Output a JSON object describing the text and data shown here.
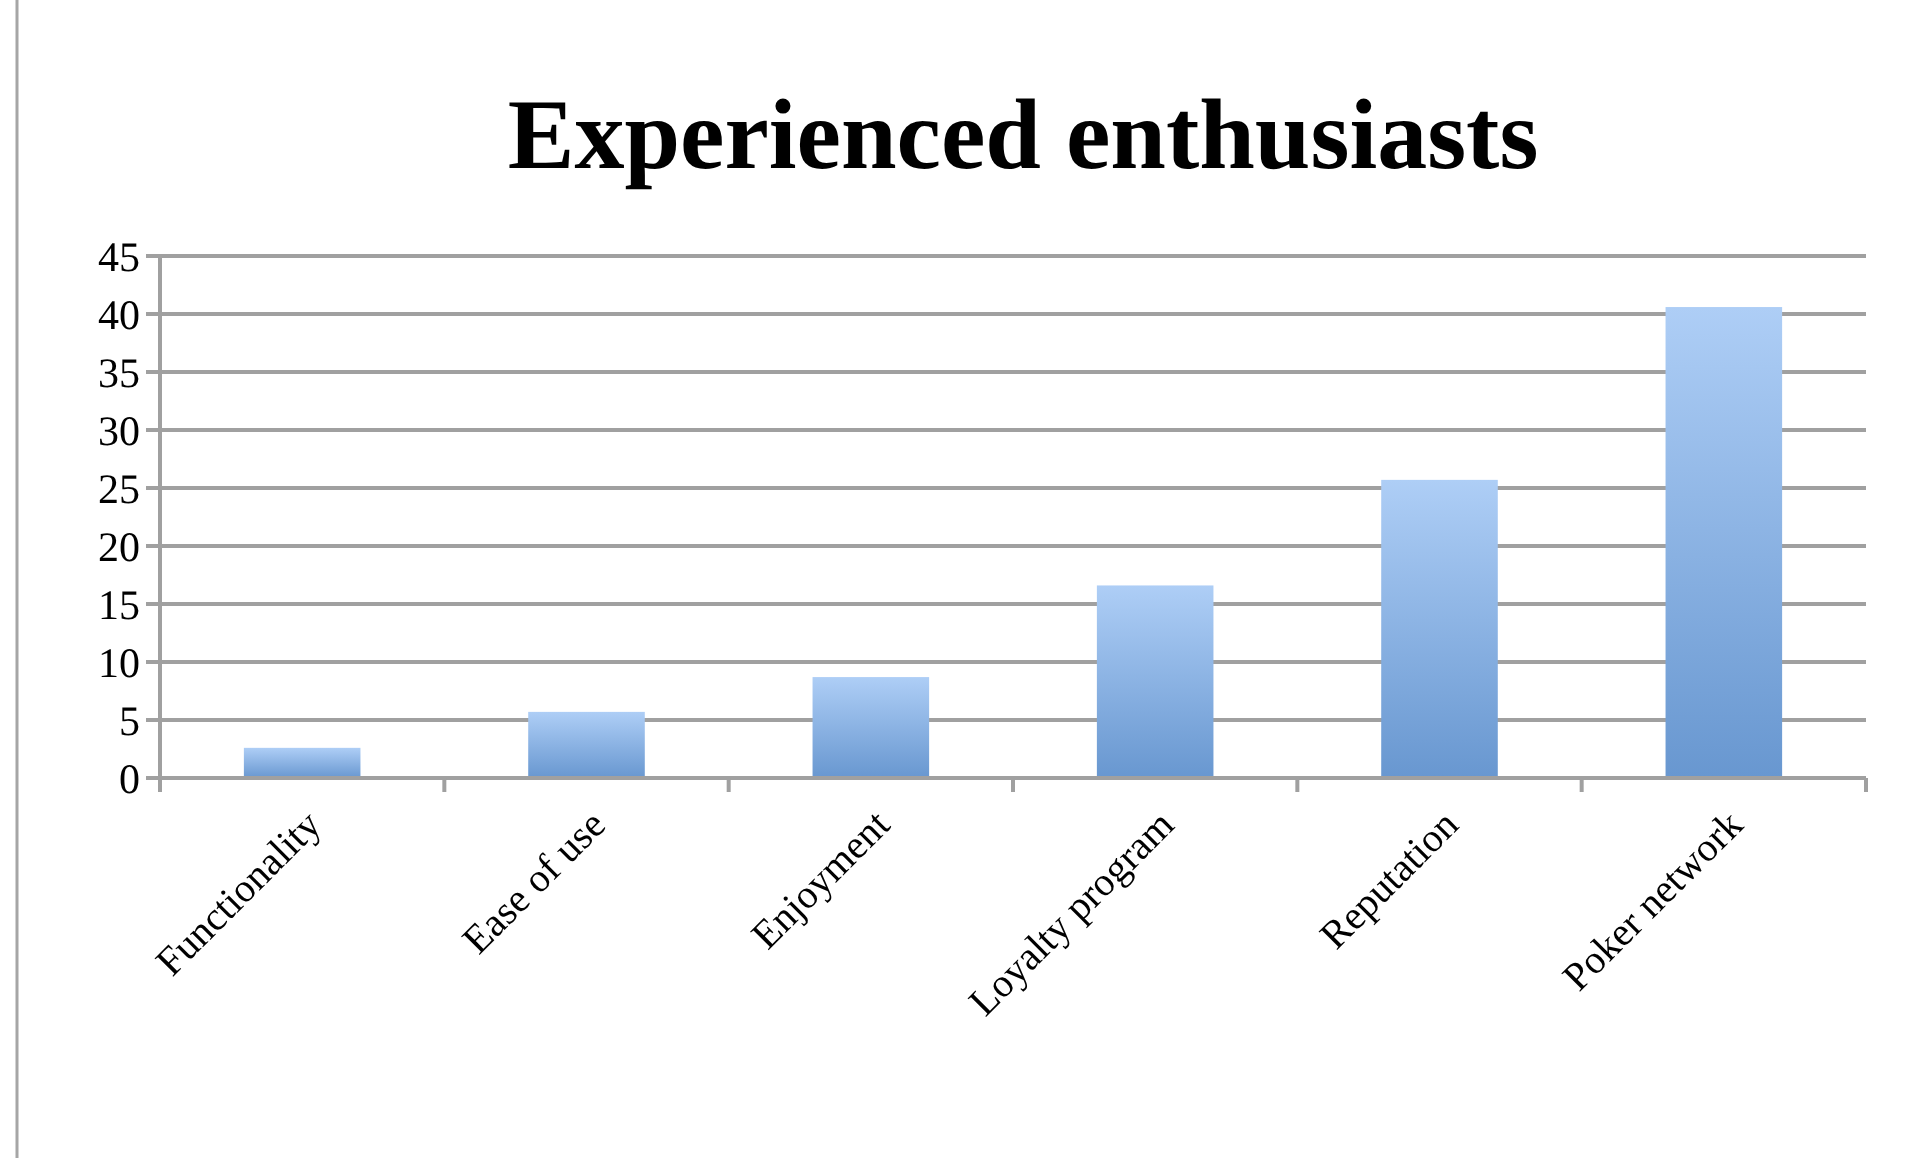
{
  "chart_data": {
    "type": "bar",
    "title": "Experienced enthusiasts",
    "categories": [
      "Functionality",
      "Ease of use",
      "Enjoyment",
      "Loyalty program",
      "Reputation",
      "Poker network"
    ],
    "values": [
      2.6,
      5.7,
      8.7,
      16.6,
      25.7,
      40.6
    ],
    "color": "#78aef0",
    "ylim": [
      0,
      45
    ],
    "yticks": [
      0,
      5,
      10,
      15,
      20,
      25,
      30,
      35,
      40,
      45
    ],
    "grid": "y"
  }
}
